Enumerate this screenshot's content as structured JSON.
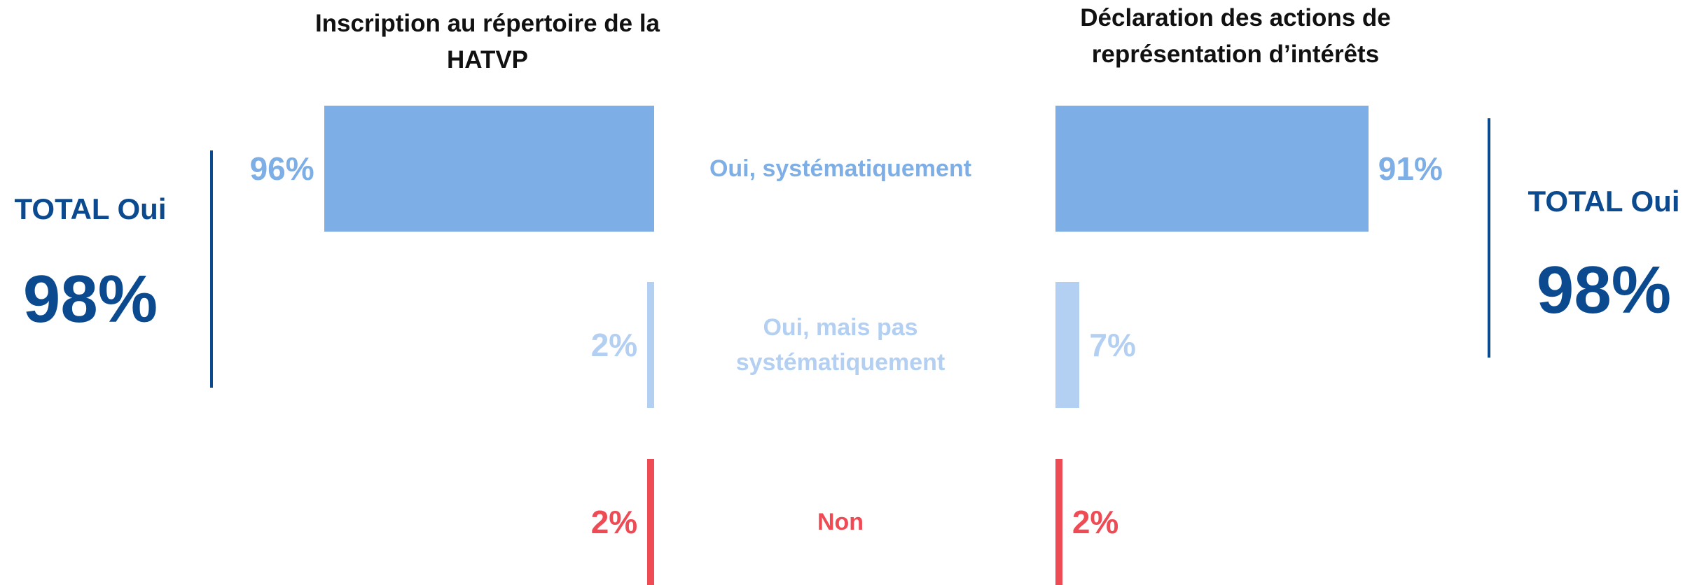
{
  "chart_data": {
    "type": "bar",
    "orientation": "horizontal",
    "categories": [
      "Oui, systématiquement",
      "Oui, mais pas systématiquement",
      "Non"
    ],
    "category_colors": [
      "#7eaee6",
      "#b3cff2",
      "#ee4b55"
    ],
    "xlim": [
      0,
      100
    ],
    "series": [
      {
        "name": "Inscription au répertoire de la HATVP",
        "values": [
          96,
          2,
          2
        ],
        "value_labels": [
          "96%",
          "2%",
          "2%"
        ]
      },
      {
        "name": "Déclaration des actions de représentation d’intérêts",
        "values": [
          91,
          7,
          2
        ],
        "value_labels": [
          "91%",
          "7%",
          "2%"
        ]
      }
    ],
    "totals": [
      {
        "label": "TOTAL Oui",
        "value": 98,
        "value_label": "98%"
      },
      {
        "label": "TOTAL Oui",
        "value": 98,
        "value_label": "98%"
      }
    ],
    "totals_color": "#0b4a8f"
  }
}
